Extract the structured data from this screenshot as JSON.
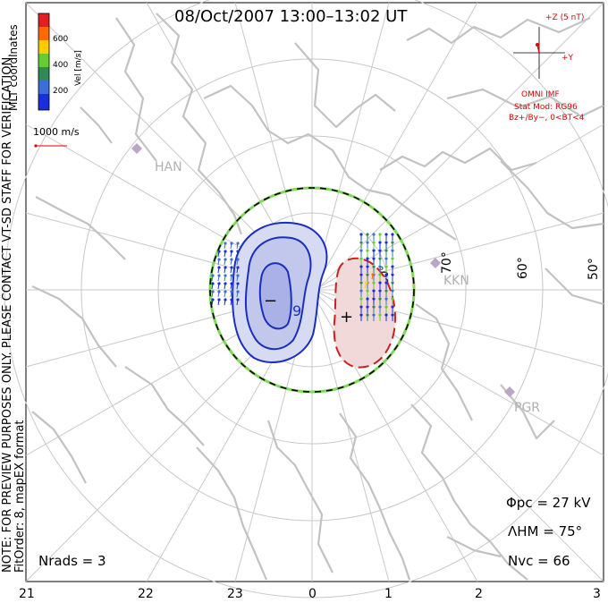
{
  "title": "08/Oct/2007 13:00–13:02 UT",
  "side_note": "NOTE: FOR PREVIEW PURPOSES ONLY. PLEASE CONTACT VT-SD STAFF FOR VERIFICATION.",
  "side_format": "FitOrder: 8, mapEX format",
  "side_coords": "MLT coordinates",
  "colorbar": {
    "label": "Vel [m/s]",
    "ticks": [
      "600",
      "400",
      "200"
    ],
    "colors": [
      "#e02020",
      "#ff6a00",
      "#ffcc00",
      "#66cc33",
      "#2e8b57",
      "#3a6fd8",
      "#1a2fd8"
    ]
  },
  "ref_vector": "1000 m/s",
  "imf": {
    "z_label": "+Z (5 nT)",
    "y_label": "+Y",
    "source": "OMNI IMF",
    "model": "Stat Mod: RG96",
    "condition": "Bz+/By−, 0<BT<4"
  },
  "stations": [
    "HAN",
    "KKN",
    "PGR"
  ],
  "lat_labels": [
    "70°",
    "60°",
    "50°",
    "80°"
  ],
  "potential_labels": [
    "−",
    "+",
    "9"
  ],
  "stats": {
    "phi_pc": "Φpc = 27 kV",
    "lambda_hm": "ΛHM = 75°",
    "n_vc": "Nvc = 66",
    "n_rads": "Nrads = 3"
  },
  "mlt_hours": [
    "21",
    "22",
    "23",
    "0",
    "1",
    "2",
    "3"
  ],
  "colors": {
    "grid": "#c8c8c8",
    "coast": "#c2c2c2",
    "negative": "#1a2fbf",
    "positive": "#cc2020",
    "boundary": "#7ed957"
  }
}
